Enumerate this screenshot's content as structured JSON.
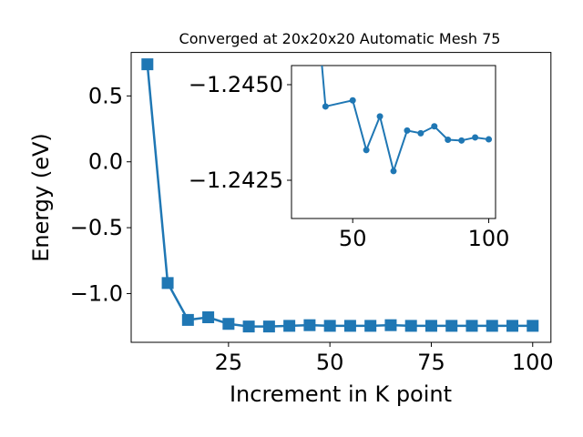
{
  "chart_data": [
    {
      "type": "line",
      "title": "Converged at 20x20x20 Automatic Mesh 75",
      "xlabel": "Increment in K point",
      "ylabel": "Energy (eV)",
      "xlim": [
        1,
        104.5
      ],
      "ylim": [
        -1.37,
        0.83
      ],
      "xticks": [
        25,
        50,
        75,
        100
      ],
      "yticks": [
        0.5,
        0.0,
        -0.5,
        -1.0
      ],
      "xtick_labels": [
        "25",
        "50",
        "75",
        "100"
      ],
      "ytick_labels": [
        "0.5",
        "0.0",
        "−0.5",
        "−1.0"
      ],
      "grid": false,
      "marker": "square",
      "color": "#1f77b4",
      "series": [
        {
          "x": [
            5,
            10,
            15,
            20,
            25,
            30,
            35,
            40,
            45,
            50,
            55,
            60,
            65,
            70,
            75,
            80,
            85,
            90,
            95,
            100
          ],
          "y": [
            0.74,
            -0.92,
            -1.2,
            -1.18,
            -1.23,
            -1.25,
            -1.25,
            -1.245,
            -1.24,
            -1.245,
            -1.245,
            -1.245,
            -1.24,
            -1.245,
            -1.245,
            -1.245,
            -1.245,
            -1.245,
            -1.245,
            -1.245
          ]
        }
      ]
    },
    {
      "type": "line",
      "title": "",
      "xlabel": "",
      "ylabel": "",
      "inset": true,
      "xlim": [
        27.5,
        102.5
      ],
      "ylim": [
        -1.2415,
        -1.2455
      ],
      "xticks": [
        50,
        100
      ],
      "yticks": [
        -1.245,
        -1.2425
      ],
      "xtick_labels": [
        "50",
        "100"
      ],
      "ytick_labels": [
        "−1.2450",
        "−1.2425"
      ],
      "grid": false,
      "marker": "circle",
      "color": "#1f77b4",
      "series": [
        {
          "x": [
            35,
            40,
            50,
            55,
            60,
            65,
            70,
            75,
            80,
            85,
            90,
            95,
            100
          ],
          "y": [
            -1.2485,
            -1.24443,
            -1.24459,
            -1.24329,
            -1.24417,
            -1.24274,
            -1.2438,
            -1.24373,
            -1.24391,
            -1.24356,
            -1.24354,
            -1.24362,
            -1.24357
          ]
        }
      ]
    }
  ]
}
